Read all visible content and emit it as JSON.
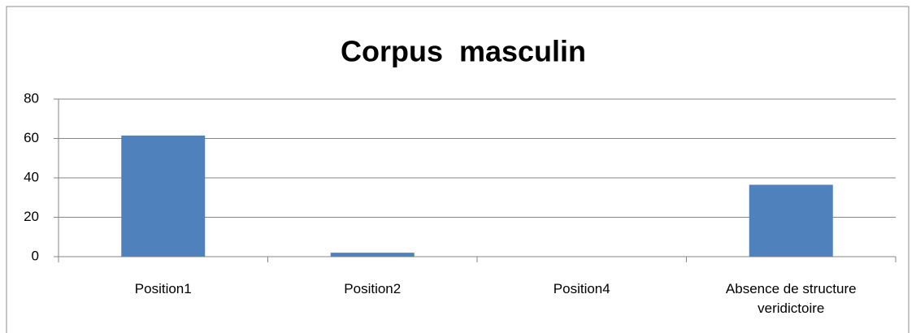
{
  "chart_data": {
    "type": "bar",
    "title": "Corpus  masculin",
    "categories": [
      "Position1",
      "Position2",
      "Position4",
      "Absence de structure veridictoire"
    ],
    "values": [
      61.5,
      2,
      0,
      36.5
    ],
    "color": "#4f81bd",
    "ylim": [
      0,
      80
    ],
    "yticks": [
      0,
      20,
      40,
      60,
      80
    ],
    "grid": true
  }
}
